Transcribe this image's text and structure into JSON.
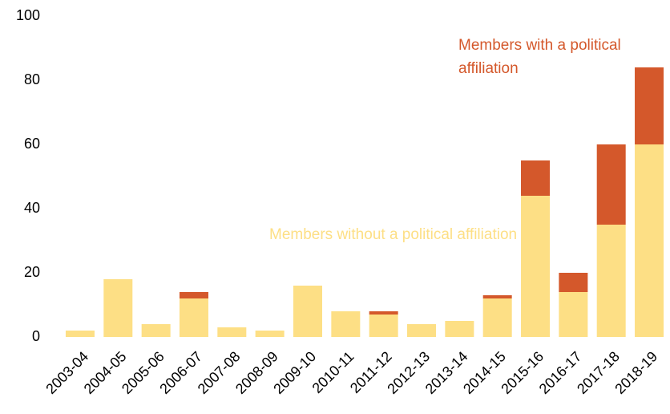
{
  "chart_data": {
    "type": "stacked_bar",
    "categories": [
      "2003-04",
      "2004-05",
      "2005-06",
      "2006-07",
      "2007-08",
      "2008-09",
      "2009-10",
      "2010-11",
      "2011-12",
      "2012-13",
      "2013-14",
      "2014-15",
      "2015-16",
      "2016-17",
      "2017-18",
      "2018-19"
    ],
    "series": [
      {
        "name": "Members without a political affiliation",
        "color": "#fddf85",
        "values": [
          2,
          18,
          4,
          12,
          3,
          2,
          16,
          8,
          7,
          4,
          5,
          12,
          44,
          14,
          35,
          60
        ]
      },
      {
        "name": "Members with a political affiliation",
        "color": "#d4582b",
        "values": [
          0,
          0,
          0,
          2,
          0,
          0,
          0,
          0,
          1,
          0,
          0,
          1,
          11,
          6,
          25,
          24
        ]
      }
    ],
    "ylim": [
      0,
      100
    ],
    "yticks": [
      0,
      20,
      40,
      60,
      80,
      100
    ],
    "grid": false
  }
}
